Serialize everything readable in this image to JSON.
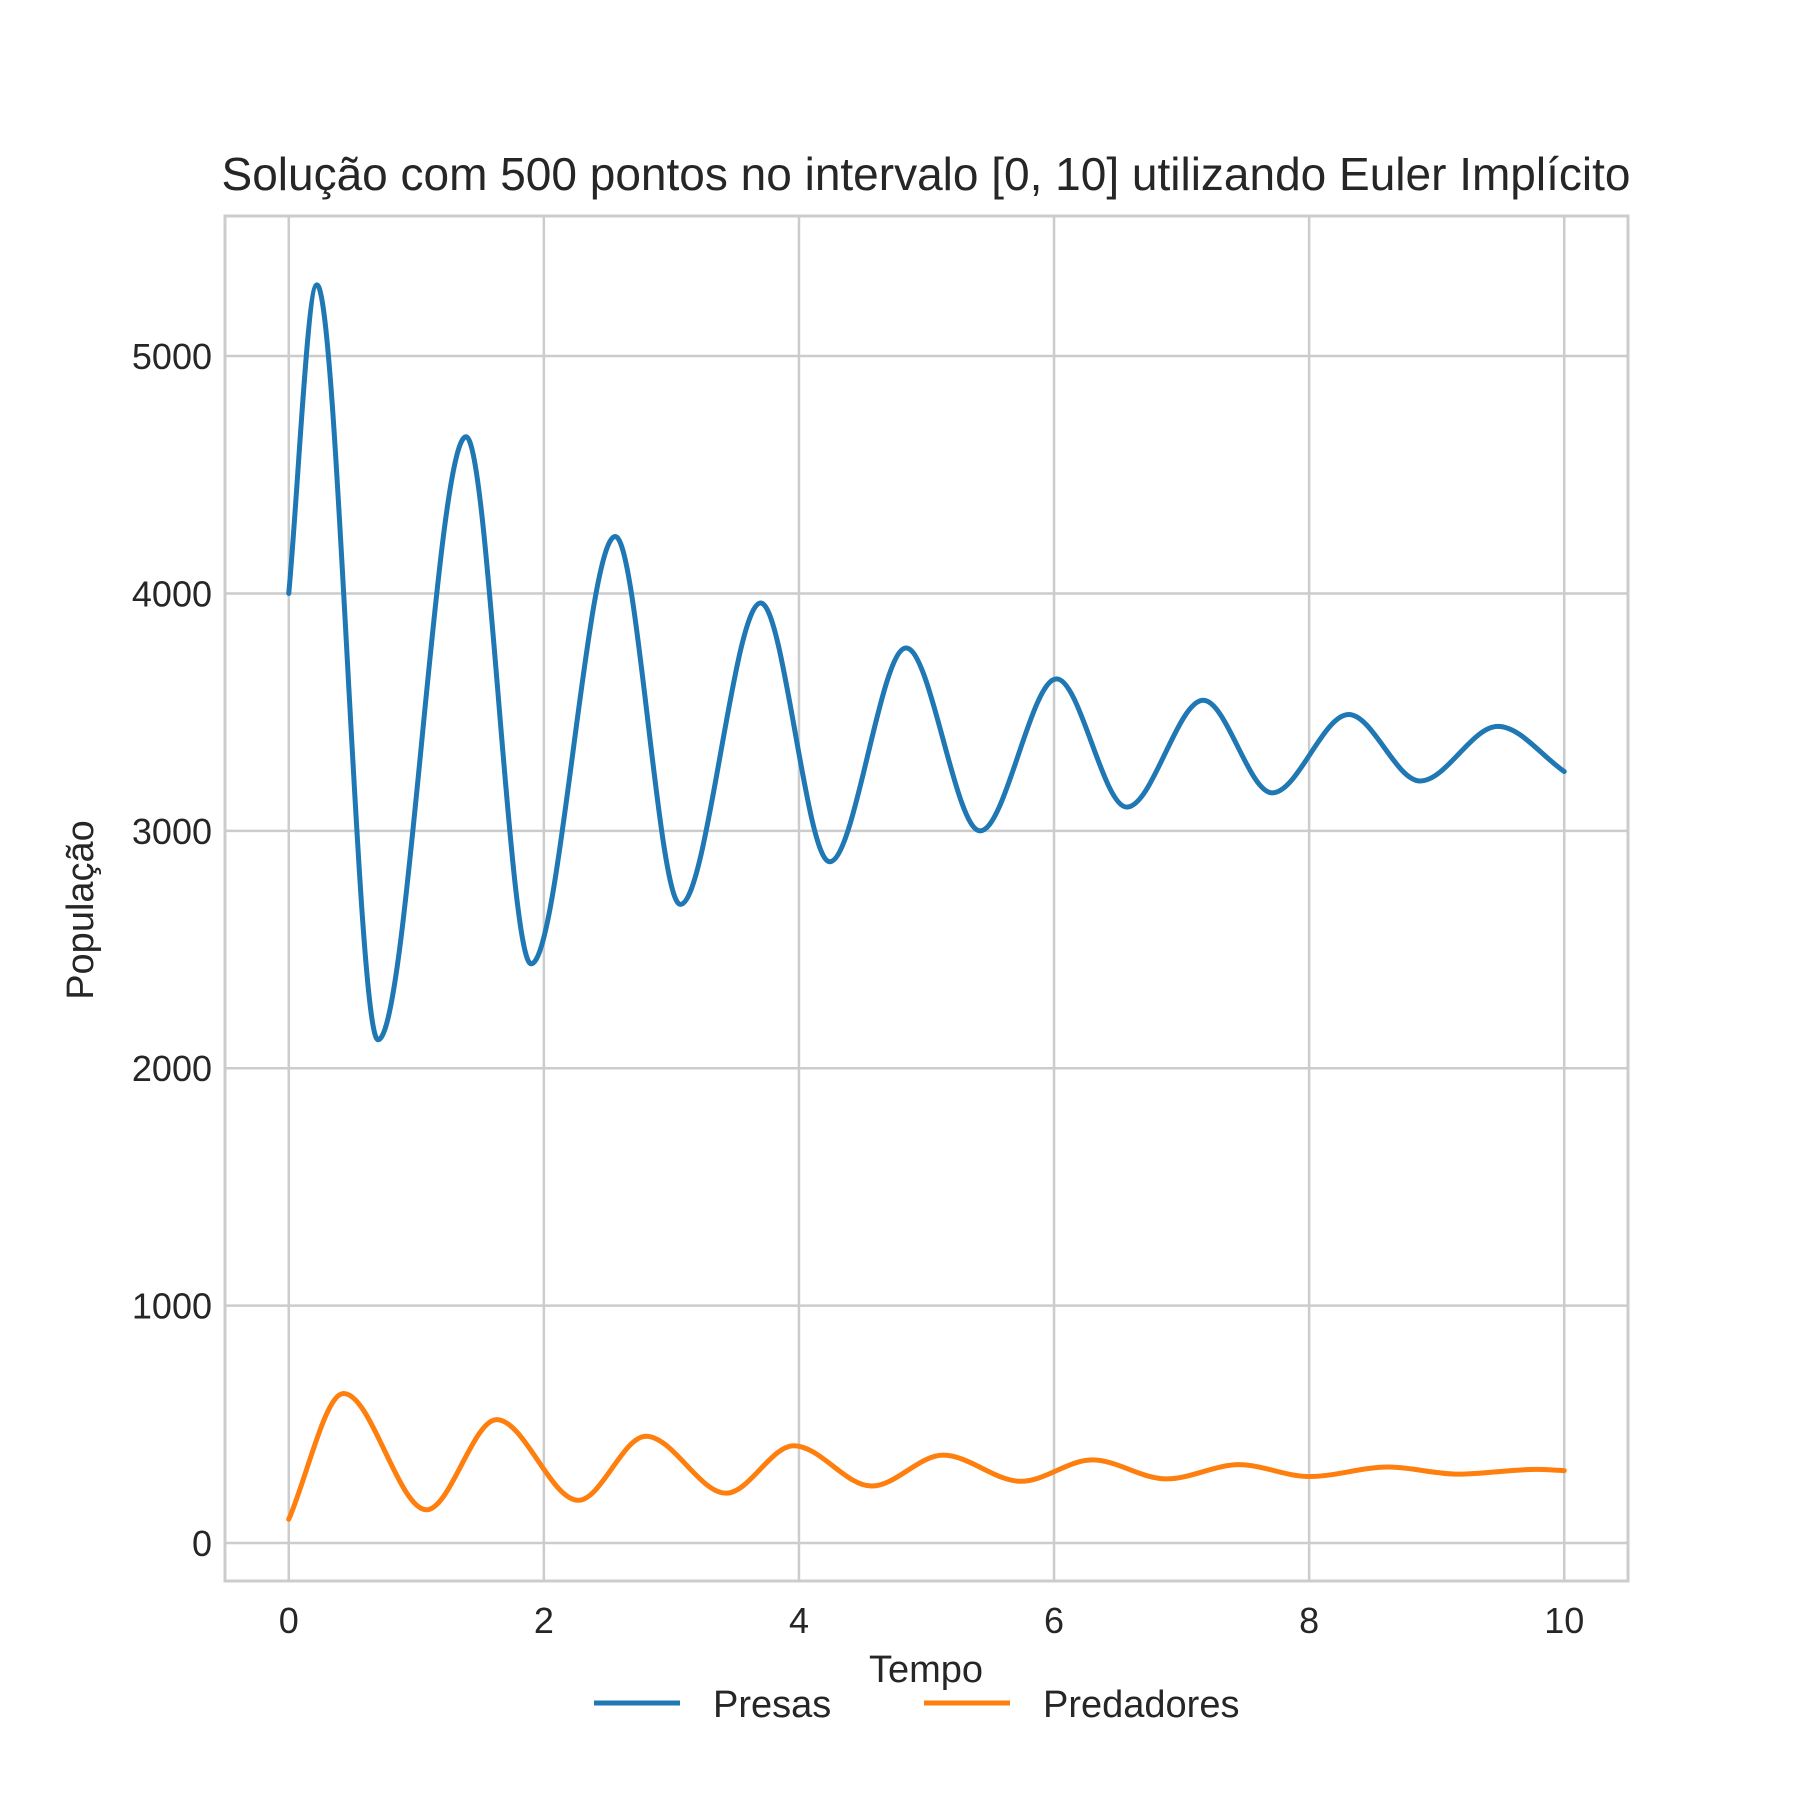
{
  "chart_data": {
    "type": "line",
    "title": "Solução com 500 pontos no intervalo [0, 10] utilizando Euler Implícito",
    "xlabel": "Tempo",
    "ylabel": "População",
    "xlim": [
      -0.5,
      10.5
    ],
    "ylim": [
      -160,
      5590
    ],
    "xticks": [
      0,
      2,
      4,
      6,
      8,
      10
    ],
    "xtick_labels": [
      "0",
      "2",
      "4",
      "6",
      "8",
      "10"
    ],
    "yticks": [
      0,
      1000,
      2000,
      3000,
      4000,
      5000
    ],
    "ytick_labels": [
      "0",
      "1000",
      "2000",
      "3000",
      "4000",
      "5000"
    ],
    "grid": true,
    "legend_position": "bottom-center",
    "series": [
      {
        "name": "Presas",
        "color": "#1f77b4",
        "x": [
          0.0,
          0.22,
          0.7,
          1.39,
          1.9,
          2.56,
          3.07,
          3.7,
          4.24,
          4.84,
          5.42,
          6.02,
          6.57,
          7.17,
          7.71,
          8.31,
          8.87,
          9.48,
          10.0
        ],
        "y": [
          4000,
          5300,
          2120,
          4660,
          2440,
          4240,
          2690,
          3960,
          2870,
          3770,
          3000,
          3640,
          3100,
          3550,
          3160,
          3490,
          3210,
          3440,
          3250
        ]
      },
      {
        "name": "Predadores",
        "color": "#ff7f0e",
        "x": [
          0.0,
          0.43,
          1.08,
          1.63,
          2.27,
          2.8,
          3.43,
          3.96,
          4.57,
          5.13,
          5.74,
          6.3,
          6.88,
          7.45,
          8.0,
          8.62,
          9.17,
          9.78,
          10.0
        ],
        "y": [
          100,
          630,
          140,
          520,
          180,
          450,
          210,
          410,
          240,
          370,
          260,
          350,
          270,
          330,
          280,
          320,
          290,
          310,
          305
        ]
      }
    ]
  }
}
